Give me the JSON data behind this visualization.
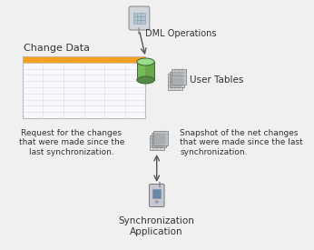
{
  "bg_color": "#f0f0f0",
  "dml_label": "DML Operations",
  "user_tables_label": "User Tables",
  "change_data_label": "Change Data",
  "request_label": "Request for the changes\nthat were made since the\nlast synchronization.",
  "snapshot_label": "Snapshot of the net changes\nthat were made since the last\nsynchronization.",
  "sync_label": "Synchronization\nApplication",
  "table_header_color": "#F5A020",
  "table_body_color": "#FFFFFF",
  "table_border_color": "#BBBBBB",
  "table_line_color": "#DDDDDD",
  "cylinder_green_light": "#99DD88",
  "cylinder_green_dark": "#558844",
  "cylinder_green_mid": "#77BB55",
  "arrow_color": "#555555",
  "text_color": "#333333",
  "monitor_frame": "#CCCCCC",
  "monitor_screen": "#AABBC8",
  "monitor_border": "#999999",
  "grid_face": "#C8CDD5",
  "grid_back": "#B0B5BD",
  "grid_line": "#888888",
  "phone_body": "#BBBBCC",
  "phone_screen": "#7799AA"
}
